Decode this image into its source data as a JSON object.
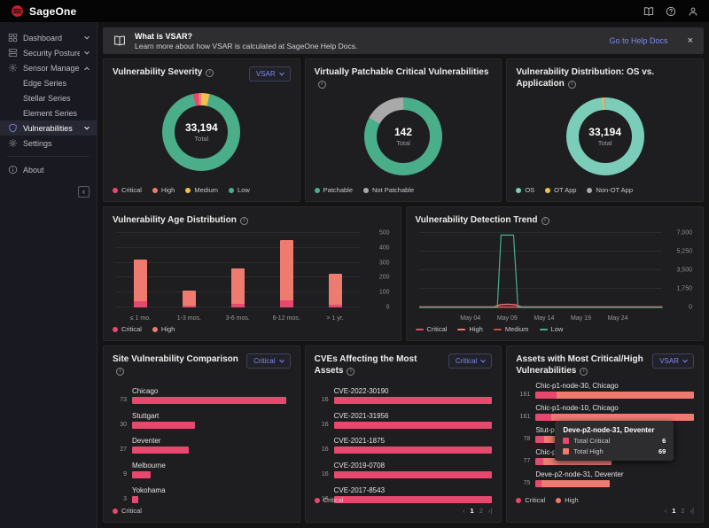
{
  "topbar": {
    "brand": "SageOne"
  },
  "banner": {
    "title": "What is VSAR?",
    "description": "Learn more about how VSAR is calculated at SageOne Help Docs.",
    "action": "Go to Help Docs",
    "close": "×"
  },
  "sidebar": {
    "collapse": "‹",
    "items": [
      {
        "label": "Dashboard",
        "icon": "grid",
        "chevron": "down"
      },
      {
        "label": "Security Posture",
        "icon": "layers",
        "chevron": "down"
      },
      {
        "label": "Sensor Management",
        "icon": "sensor",
        "chevron": "up"
      },
      {
        "label": "Edge Series",
        "indent": true
      },
      {
        "label": "Stellar Series",
        "indent": true
      },
      {
        "label": "Element Series",
        "indent": true
      },
      {
        "label": "Vulnerabilities",
        "icon": "shield",
        "chevron": "down",
        "active": true
      },
      {
        "label": "Settings",
        "icon": "gear"
      },
      {
        "divider": true
      },
      {
        "label": "About",
        "icon": "info"
      }
    ]
  },
  "chart_data": [
    {
      "type": "pie",
      "title": "Vulnerability Severity",
      "dropdown": "VSAR",
      "rotate": -12,
      "center_value": "33,194",
      "center_label": "Total",
      "slices": [
        {
          "label": "Critical",
          "value": 2.2,
          "color": "#e8486e"
        },
        {
          "label": "High",
          "value": 1.2,
          "color": "#ee7a70"
        },
        {
          "label": "Medium",
          "value": 3.4,
          "color": "#eec04e"
        },
        {
          "label": "Low",
          "value": 93.2,
          "color": "#4aae8b"
        }
      ],
      "legend": [
        {
          "label": "Critical",
          "color": "#e8486e"
        },
        {
          "label": "High",
          "color": "#ee7a70"
        },
        {
          "label": "Medium",
          "color": "#eec04e"
        },
        {
          "label": "Low",
          "color": "#4aae8b"
        }
      ]
    },
    {
      "type": "pie",
      "title": "Virtually Patchable Critical Vulnerabilities",
      "center_value": "142",
      "center_label": "Total",
      "slices": [
        {
          "label": "Patchable",
          "value": 83,
          "color": "#4aae8b"
        },
        {
          "label": "Not Patchable",
          "value": 17,
          "color": "#a9a9a9"
        }
      ],
      "legend": [
        {
          "label": "Patchable",
          "color": "#4aae8b"
        },
        {
          "label": "Not Patchable",
          "color": "#a9a9a9"
        }
      ]
    },
    {
      "type": "pie",
      "title": "Vulnerability Distribution: OS vs. Application",
      "center_value": "33,194",
      "center_label": "Total",
      "slices": [
        {
          "label": "OS",
          "value": 98.6,
          "color": "#7bcdb9"
        },
        {
          "label": "OT App",
          "value": 0.8,
          "color": "#eec04e"
        },
        {
          "label": "Non-OT App",
          "value": 0.6,
          "color": "#a9a9a9"
        }
      ],
      "legend": [
        {
          "label": "OS",
          "color": "#7bcdb9"
        },
        {
          "label": "OT App",
          "color": "#eec04e"
        },
        {
          "label": "Non-OT App",
          "color": "#a9a9a9"
        }
      ]
    },
    {
      "type": "bar",
      "title": "Vulnerability Age Distribution",
      "categories": [
        "≤ 1 mo.",
        "1-3 mos.",
        "3-6 mos.",
        "6-12 mos.",
        "> 1 yr."
      ],
      "series": [
        {
          "name": "Critical",
          "color": "#e8486e",
          "values": [
            40,
            10,
            25,
            45,
            20
          ]
        },
        {
          "name": "High",
          "color": "#ee7a70",
          "values": [
            280,
            105,
            235,
            410,
            205
          ]
        }
      ],
      "ylim": [
        0,
        500
      ],
      "yticks": [
        0,
        100,
        200,
        300,
        400,
        500
      ],
      "legend": [
        {
          "label": "Critical",
          "color": "#e8486e"
        },
        {
          "label": "High",
          "color": "#ee7a70"
        }
      ]
    },
    {
      "type": "line",
      "title": "Vulnerability Detection Trend",
      "xrange": [
        -3,
        30
      ],
      "xticks": [
        {
          "label": "May 04",
          "x": 4
        },
        {
          "label": "May 09",
          "x": 9
        },
        {
          "label": "May 14",
          "x": 14
        },
        {
          "label": "May 19",
          "x": 19
        },
        {
          "label": "May 24",
          "x": 24
        }
      ],
      "ylim": [
        0,
        7000
      ],
      "yticks": [
        {
          "label": "0",
          "v": 0
        },
        {
          "label": "1,750",
          "v": 1750
        },
        {
          "label": "3,500",
          "v": 3500
        },
        {
          "label": "5,250",
          "v": 5250
        },
        {
          "label": "7,000",
          "v": 7000
        }
      ],
      "series": [
        {
          "name": "Critical",
          "color": "#e8486e",
          "points": [
            [
              -3,
              60
            ],
            [
              30,
              60
            ]
          ]
        },
        {
          "name": "High",
          "color": "#ee7a70",
          "points": [
            [
              -3,
              15
            ],
            [
              7,
              15
            ],
            [
              8,
              260
            ],
            [
              9,
              300
            ],
            [
              10,
              260
            ],
            [
              11,
              15
            ],
            [
              30,
              15
            ]
          ]
        },
        {
          "name": "Medium",
          "color": "#c25044",
          "points": [
            [
              -3,
              0
            ],
            [
              30,
              0
            ]
          ]
        },
        {
          "name": "Low",
          "color": "#4aae8b",
          "points": [
            [
              -3,
              0
            ],
            [
              7.6,
              0
            ],
            [
              8.1,
              6800
            ],
            [
              9.8,
              6800
            ],
            [
              10.4,
              0
            ],
            [
              30,
              0
            ]
          ]
        }
      ],
      "legend": [
        {
          "label": "Critical",
          "color": "#e8486e"
        },
        {
          "label": "High",
          "color": "#ee7a70"
        },
        {
          "label": "Medium",
          "color": "#c25044"
        },
        {
          "label": "Low",
          "color": "#4aae8b"
        }
      ]
    },
    {
      "type": "bar-h",
      "title": "Site Vulnerability Comparison",
      "dropdown": "Critical",
      "max": 75,
      "color": "#e8486e",
      "rows": [
        {
          "label": "Chicago",
          "value": 73
        },
        {
          "label": "Stuttgart",
          "value": 30
        },
        {
          "label": "Deventer",
          "value": 27
        },
        {
          "label": "Melbourne",
          "value": 9
        },
        {
          "label": "Yokohama",
          "value": 3
        }
      ],
      "legend": [
        {
          "label": "Critical",
          "color": "#e8486e"
        }
      ]
    },
    {
      "type": "bar-h",
      "title": "CVEs Affecting the Most Assets",
      "dropdown": "Critical",
      "max": 16,
      "color": "#e8486e",
      "rows": [
        {
          "label": "CVE-2022-30190",
          "value": 16
        },
        {
          "label": "CVE-2021-31956",
          "value": 16
        },
        {
          "label": "CVE-2021-1875",
          "value": 16
        },
        {
          "label": "CVE-2019-0708",
          "value": 16
        },
        {
          "label": "CVE-2017-8543",
          "value": 16
        }
      ],
      "legend": [
        {
          "label": "Critical",
          "color": "#e8486e"
        }
      ],
      "pagination": {
        "prev": "‹",
        "pages": [
          "1",
          "2"
        ],
        "active": "1",
        "last": "›|"
      }
    },
    {
      "type": "bar-h-stacked",
      "title": "Assets with Most Critical/High Vulnerabilities",
      "dropdown": "VSAR",
      "max": 161,
      "colors": {
        "critical": "#e8486e",
        "high": "#ee7a70"
      },
      "rows": [
        {
          "label": "Chic-p1-node-30, Chicago",
          "total": 161,
          "critical": 21,
          "high": 140
        },
        {
          "label": "Chic-p1-node-10, Chicago",
          "total": 161,
          "critical": 16,
          "high": 145
        },
        {
          "label": "Stut-p2-node-1, Stuttgart",
          "total": 78,
          "critical": 9,
          "high": 69
        },
        {
          "label": "Chic-p1-node-1, Chicago",
          "total": 77,
          "critical": 8,
          "high": 69
        },
        {
          "label": "Deve-p2-node-31, Deventer",
          "total": 75,
          "critical": 6,
          "high": 69
        }
      ],
      "legend": [
        {
          "label": "Critical",
          "color": "#e8486e"
        },
        {
          "label": "High",
          "color": "#ee7a70"
        }
      ],
      "pagination": {
        "prev": "‹",
        "pages": [
          "1",
          "2"
        ],
        "active": "1",
        "last": "›|"
      },
      "tooltip": {
        "title": "Deve-p2-node-31, Deventer",
        "rows": [
          {
            "label": "Total Critical",
            "value": "6",
            "color": "#e8486e"
          },
          {
            "label": "Total High",
            "value": "69",
            "color": "#ee7a70"
          }
        ]
      }
    }
  ]
}
